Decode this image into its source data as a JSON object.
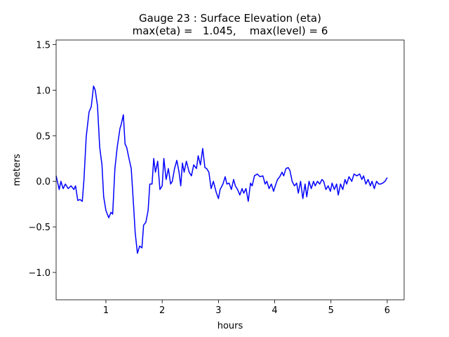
{
  "chart_data": {
    "type": "line",
    "title": "Gauge 23 : Surface Elevation (eta)",
    "subtitle": "max(eta) =   1.045,    max(level) = 6",
    "xlabel": "hours",
    "ylabel": "meters",
    "xlim": [
      0.115,
      6.3
    ],
    "ylim": [
      -1.3,
      1.55
    ],
    "xticks": [
      1,
      2,
      3,
      4,
      5,
      6
    ],
    "yticks": [
      {
        "value": -1.0,
        "label": "−1.0"
      },
      {
        "value": -0.5,
        "label": "−0.5"
      },
      {
        "value": 0.0,
        "label": "0.0"
      },
      {
        "value": 0.5,
        "label": "0.5"
      },
      {
        "value": 1.0,
        "label": "1.0"
      },
      {
        "value": 1.5,
        "label": "1.5"
      }
    ],
    "grid": false,
    "x": [
      0.115,
      0.17,
      0.2,
      0.24,
      0.28,
      0.33,
      0.38,
      0.43,
      0.46,
      0.5,
      0.54,
      0.58,
      0.61,
      0.65,
      0.7,
      0.74,
      0.78,
      0.81,
      0.85,
      0.89,
      0.93,
      0.96,
      1.0,
      1.05,
      1.09,
      1.12,
      1.16,
      1.2,
      1.25,
      1.27,
      1.31,
      1.34,
      1.37,
      1.41,
      1.45,
      1.49,
      1.52,
      1.56,
      1.6,
      1.64,
      1.67,
      1.71,
      1.75,
      1.78,
      1.82,
      1.85,
      1.88,
      1.92,
      1.96,
      2.0,
      2.03,
      2.07,
      2.11,
      2.15,
      2.18,
      2.22,
      2.26,
      2.3,
      2.33,
      2.36,
      2.39,
      2.43,
      2.48,
      2.52,
      2.56,
      2.61,
      2.64,
      2.68,
      2.72,
      2.76,
      2.79,
      2.83,
      2.87,
      2.91,
      2.96,
      3.0,
      3.03,
      3.08,
      3.12,
      3.15,
      3.19,
      3.23,
      3.27,
      3.3,
      3.34,
      3.38,
      3.42,
      3.45,
      3.49,
      3.53,
      3.57,
      3.6,
      3.64,
      3.69,
      3.74,
      3.79,
      3.83,
      3.86,
      3.9,
      3.94,
      3.98,
      4.01,
      4.05,
      4.09,
      4.13,
      4.16,
      4.2,
      4.24,
      4.27,
      4.31,
      4.35,
      4.39,
      4.42,
      4.46,
      4.5,
      4.54,
      4.57,
      4.61,
      4.65,
      4.69,
      4.72,
      4.76,
      4.8,
      4.84,
      4.87,
      4.91,
      4.95,
      4.99,
      5.02,
      5.06,
      5.1,
      5.13,
      5.17,
      5.21,
      5.25,
      5.28,
      5.32,
      5.37,
      5.41,
      5.46,
      5.51,
      5.55,
      5.58,
      5.62,
      5.66,
      5.7,
      5.73,
      5.77,
      5.81,
      5.85,
      5.88,
      5.92,
      5.96,
      6.0
    ],
    "series": [
      {
        "name": "eta",
        "color": "#0000ff",
        "values": [
          0.06,
          -0.09,
          0.0,
          -0.08,
          -0.03,
          -0.08,
          -0.05,
          -0.09,
          -0.05,
          -0.21,
          -0.2,
          -0.22,
          0.02,
          0.49,
          0.76,
          0.82,
          1.045,
          1.0,
          0.83,
          0.37,
          0.18,
          -0.17,
          -0.32,
          -0.4,
          -0.34,
          -0.36,
          0.14,
          0.37,
          0.58,
          0.62,
          0.73,
          0.41,
          0.37,
          0.25,
          0.14,
          -0.25,
          -0.56,
          -0.79,
          -0.71,
          -0.73,
          -0.48,
          -0.45,
          -0.32,
          -0.03,
          -0.03,
          0.25,
          0.1,
          0.22,
          -0.09,
          -0.05,
          0.25,
          0.02,
          0.14,
          -0.03,
          0.0,
          0.14,
          0.23,
          0.1,
          -0.05,
          0.2,
          0.1,
          0.22,
          0.1,
          0.06,
          0.18,
          0.14,
          0.28,
          0.18,
          0.36,
          0.15,
          0.14,
          0.1,
          -0.08,
          0.0,
          -0.12,
          -0.19,
          -0.09,
          -0.03,
          0.05,
          -0.03,
          -0.02,
          -0.09,
          0.02,
          -0.05,
          -0.09,
          -0.15,
          -0.08,
          -0.13,
          -0.08,
          -0.22,
          -0.02,
          -0.05,
          0.06,
          0.08,
          0.05,
          0.06,
          -0.03,
          0.0,
          -0.08,
          -0.03,
          -0.11,
          -0.05,
          0.02,
          0.05,
          0.1,
          0.06,
          0.14,
          0.15,
          0.12,
          0.0,
          -0.05,
          -0.02,
          -0.13,
          0.0,
          -0.19,
          -0.03,
          -0.17,
          0.0,
          -0.08,
          0.0,
          -0.05,
          0.0,
          -0.03,
          0.02,
          0.0,
          -0.09,
          -0.05,
          -0.11,
          -0.02,
          -0.09,
          -0.03,
          -0.15,
          -0.03,
          -0.09,
          0.02,
          -0.03,
          0.05,
          0.0,
          0.08,
          0.06,
          0.08,
          0.02,
          0.06,
          -0.03,
          0.02,
          -0.05,
          0.0,
          -0.08,
          0.0,
          -0.03,
          -0.03,
          -0.02,
          0.0,
          0.04
        ]
      }
    ]
  }
}
